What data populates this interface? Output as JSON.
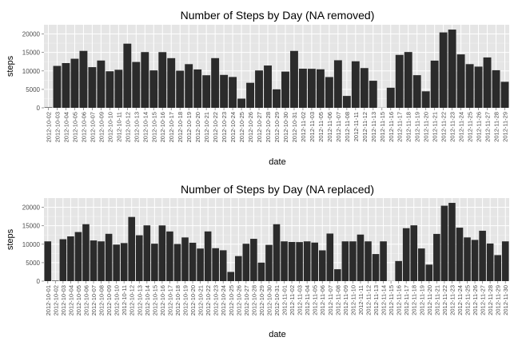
{
  "chart_data": [
    {
      "type": "bar",
      "title": "Number of Steps by Day (NA removed)",
      "xlabel": "date",
      "ylabel": "steps",
      "ylim": [
        0,
        22500
      ],
      "yticks": [
        0,
        5000,
        10000,
        15000,
        20000
      ],
      "grid": true,
      "categories": [
        "2012-10-02",
        "2012-10-03",
        "2012-10-04",
        "2012-10-05",
        "2012-10-06",
        "2012-10-07",
        "2012-10-09",
        "2012-10-10",
        "2012-10-11",
        "2012-10-12",
        "2012-10-13",
        "2012-10-14",
        "2012-10-15",
        "2012-10-16",
        "2012-10-17",
        "2012-10-18",
        "2012-10-19",
        "2012-10-20",
        "2012-10-21",
        "2012-10-22",
        "2012-10-23",
        "2012-10-24",
        "2012-10-25",
        "2012-10-26",
        "2012-10-27",
        "2012-10-28",
        "2012-10-29",
        "2012-10-30",
        "2012-10-31",
        "2012-11-02",
        "2012-11-03",
        "2012-11-05",
        "2012-11-06",
        "2012-11-07",
        "2012-11-08",
        "2012-11-11",
        "2012-11-12",
        "2012-11-13",
        "2012-11-15",
        "2012-11-16",
        "2012-11-17",
        "2012-11-18",
        "2012-11-19",
        "2012-11-20",
        "2012-11-21",
        "2012-11-22",
        "2012-11-23",
        "2012-11-24",
        "2012-11-25",
        "2012-11-26",
        "2012-11-27",
        "2012-11-28",
        "2012-11-29"
      ],
      "x_dates": [
        "2012-10-02",
        "2012-10-03",
        "2012-10-04",
        "2012-10-05",
        "2012-10-06",
        "2012-10-07",
        "2012-10-09",
        "2012-10-10",
        "2012-10-11",
        "2012-10-12",
        "2012-10-13",
        "2012-10-14",
        "2012-10-15",
        "2012-10-16",
        "2012-10-17",
        "2012-10-18",
        "2012-10-19",
        "2012-10-20",
        "2012-10-21",
        "2012-10-22",
        "2012-10-23",
        "2012-10-24",
        "2012-10-25",
        "2012-10-26",
        "2012-10-27",
        "2012-10-28",
        "2012-10-29",
        "2012-10-30",
        "2012-10-31",
        "2012-11-02",
        "2012-11-03",
        "2012-11-05",
        "2012-11-06",
        "2012-11-07",
        "2012-11-08",
        "2012-11-11",
        "2012-11-12",
        "2012-11-13",
        "2012-11-15",
        "2012-11-16",
        "2012-11-17",
        "2012-11-18",
        "2012-11-19",
        "2012-11-20",
        "2012-11-21",
        "2012-11-22",
        "2012-11-23",
        "2012-11-24",
        "2012-11-25",
        "2012-11-26",
        "2012-11-27",
        "2012-11-28",
        "2012-11-29"
      ],
      "values": [
        126,
        11352,
        12116,
        13294,
        15420,
        11015,
        12811,
        9900,
        10304,
        17382,
        12426,
        15098,
        10139,
        15084,
        13452,
        10056,
        11829,
        10395,
        8821,
        13460,
        8918,
        8355,
        2492,
        6778,
        10119,
        11458,
        5018,
        9819,
        15414,
        10600,
        10571,
        10439,
        8334,
        12883,
        3219,
        12608,
        10765,
        7336,
        41,
        5441,
        14339,
        15110,
        8841,
        4472,
        12787,
        20427,
        21194,
        14478,
        11834,
        11162,
        13646,
        10183,
        7047
      ]
    },
    {
      "type": "bar",
      "title": "Number of Steps by Day (NA replaced)",
      "xlabel": "date",
      "ylabel": "steps",
      "ylim": [
        0,
        22500
      ],
      "yticks": [
        0,
        5000,
        10000,
        15000,
        20000
      ],
      "grid": true,
      "categories": [
        "2012-10-01",
        "2012-10-02",
        "2012-10-03",
        "2012-10-04",
        "2012-10-05",
        "2012-10-06",
        "2012-10-07",
        "2012-10-08",
        "2012-10-09",
        "2012-10-10",
        "2012-10-11",
        "2012-10-12",
        "2012-10-13",
        "2012-10-14",
        "2012-10-15",
        "2012-10-16",
        "2012-10-17",
        "2012-10-18",
        "2012-10-19",
        "2012-10-20",
        "2012-10-21",
        "2012-10-22",
        "2012-10-23",
        "2012-10-24",
        "2012-10-25",
        "2012-10-26",
        "2012-10-27",
        "2012-10-28",
        "2012-10-29",
        "2012-10-30",
        "2012-10-31",
        "2012-11-01",
        "2012-11-02",
        "2012-11-03",
        "2012-11-04",
        "2012-11-05",
        "2012-11-06",
        "2012-11-07",
        "2012-11-08",
        "2012-11-09",
        "2012-11-10",
        "2012-11-11",
        "2012-11-12",
        "2012-11-13",
        "2012-11-14",
        "2012-11-15",
        "2012-11-16",
        "2012-11-17",
        "2012-11-18",
        "2012-11-19",
        "2012-11-20",
        "2012-11-21",
        "2012-11-22",
        "2012-11-23",
        "2012-11-24",
        "2012-11-25",
        "2012-11-26",
        "2012-11-27",
        "2012-11-28",
        "2012-11-29",
        "2012-11-30"
      ],
      "values": [
        10766,
        126,
        11352,
        12116,
        13294,
        15420,
        11015,
        10766,
        12811,
        9900,
        10304,
        17382,
        12426,
        15098,
        10139,
        15084,
        13452,
        10056,
        11829,
        10395,
        8821,
        13460,
        8918,
        8355,
        2492,
        6778,
        10119,
        11458,
        5018,
        9819,
        15414,
        10766,
        10600,
        10571,
        10766,
        10439,
        8334,
        12883,
        3219,
        10766,
        10766,
        12608,
        10765,
        7336,
        10766,
        41,
        5441,
        14339,
        15110,
        8841,
        4472,
        12787,
        20427,
        21194,
        14478,
        11834,
        11162,
        13646,
        10183,
        7047,
        10766
      ]
    }
  ]
}
